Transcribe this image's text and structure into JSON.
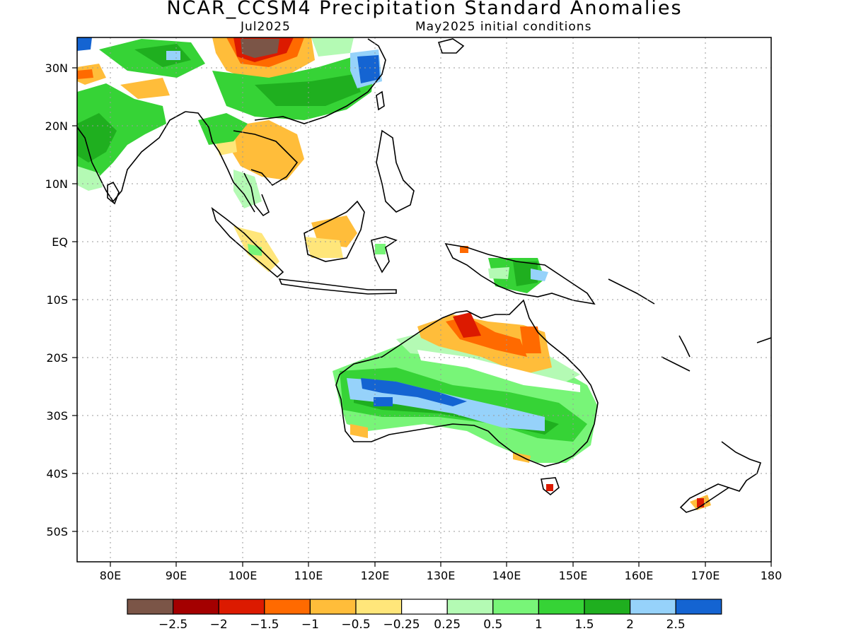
{
  "header": {
    "title": "NCAR_CCSM4 Precipitation Standard Anomalies",
    "valid_month": "Jul2025",
    "initial_conditions": "May2025 initial conditions"
  },
  "map": {
    "lat_labels": [
      "30N",
      "20N",
      "10N",
      "EQ",
      "10S",
      "20S",
      "30S",
      "40S",
      "50S"
    ],
    "lon_labels": [
      "80E",
      "90E",
      "100E",
      "110E",
      "120E",
      "130E",
      "140E",
      "150E",
      "160E",
      "170E",
      "180"
    ],
    "grid": "dotted"
  },
  "colorbar": {
    "colors": [
      "#7b5547",
      "#a40000",
      "#dc1a00",
      "#ff6a00",
      "#ffbd3a",
      "#ffe67a",
      "#ffffff",
      "#b4fab4",
      "#78f578",
      "#36d336",
      "#1faf1f",
      "#96d2fa",
      "#1464d2"
    ],
    "labels": [
      "−2.5",
      "−2",
      "−1.5",
      "−1",
      "−0.5",
      "−0.25",
      "0.25",
      "0.5",
      "1",
      "1.5",
      "2",
      "2.5"
    ]
  }
}
